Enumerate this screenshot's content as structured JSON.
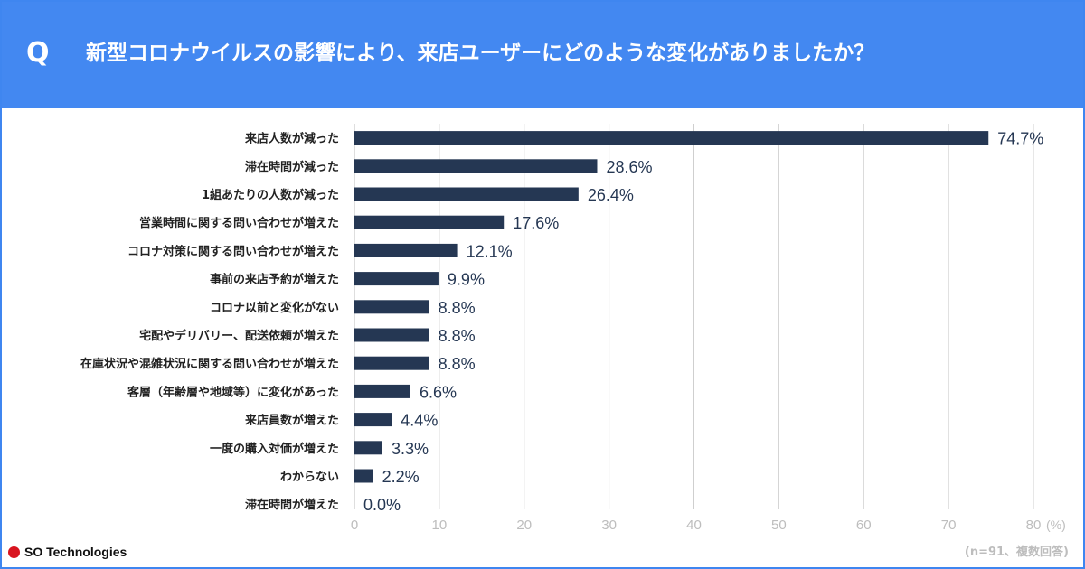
{
  "header": {
    "q_label": "Q",
    "question": "新型コロナウイルスの影響により、来店ユーザーにどのような変化がありましたか？"
  },
  "footer": {
    "logo_text": "SO Technologies",
    "note": "(n=91、複数回答)"
  },
  "colors": {
    "header_bg": "#4388f1",
    "bar": "#253753",
    "logo_dot": "#d8141f"
  },
  "chart_data": {
    "type": "bar",
    "orientation": "horizontal",
    "categories": [
      "来店人数が減った",
      "滞在時間が減った",
      "1組あたりの人数が減った",
      "営業時間に関する問い合わせが増えた",
      "コロナ対策に関する問い合わせが増えた",
      "事前の来店予約が増えた",
      "コロナ以前と変化がない",
      "宅配やデリバリー、配送依頼が増えた",
      "在庫状況や混雑状況に関する問い合わせが増えた",
      "客層（年齢層や地域等）に変化があった",
      "来店員数が増えた",
      "一度の購入対価が増えた",
      "わからない",
      "滞在時間が増えた"
    ],
    "values": [
      74.7,
      28.6,
      26.4,
      17.6,
      12.1,
      9.9,
      8.8,
      8.8,
      8.8,
      6.6,
      4.4,
      3.3,
      2.2,
      0.0
    ],
    "value_labels": [
      "74.7%",
      "28.6%",
      "26.4%",
      "17.6%",
      "12.1%",
      "9.9%",
      "8.8%",
      "8.8%",
      "8.8%",
      "6.6%",
      "4.4%",
      "3.3%",
      "2.2%",
      "0.0%"
    ],
    "xlim": [
      0,
      80
    ],
    "xticks": [
      "0",
      "10",
      "20",
      "30",
      "40",
      "50",
      "60",
      "70",
      "80"
    ],
    "xticks_values": [
      0,
      10,
      20,
      30,
      40,
      50,
      60,
      70,
      80
    ],
    "x_unit": "(%)",
    "grid": true
  }
}
